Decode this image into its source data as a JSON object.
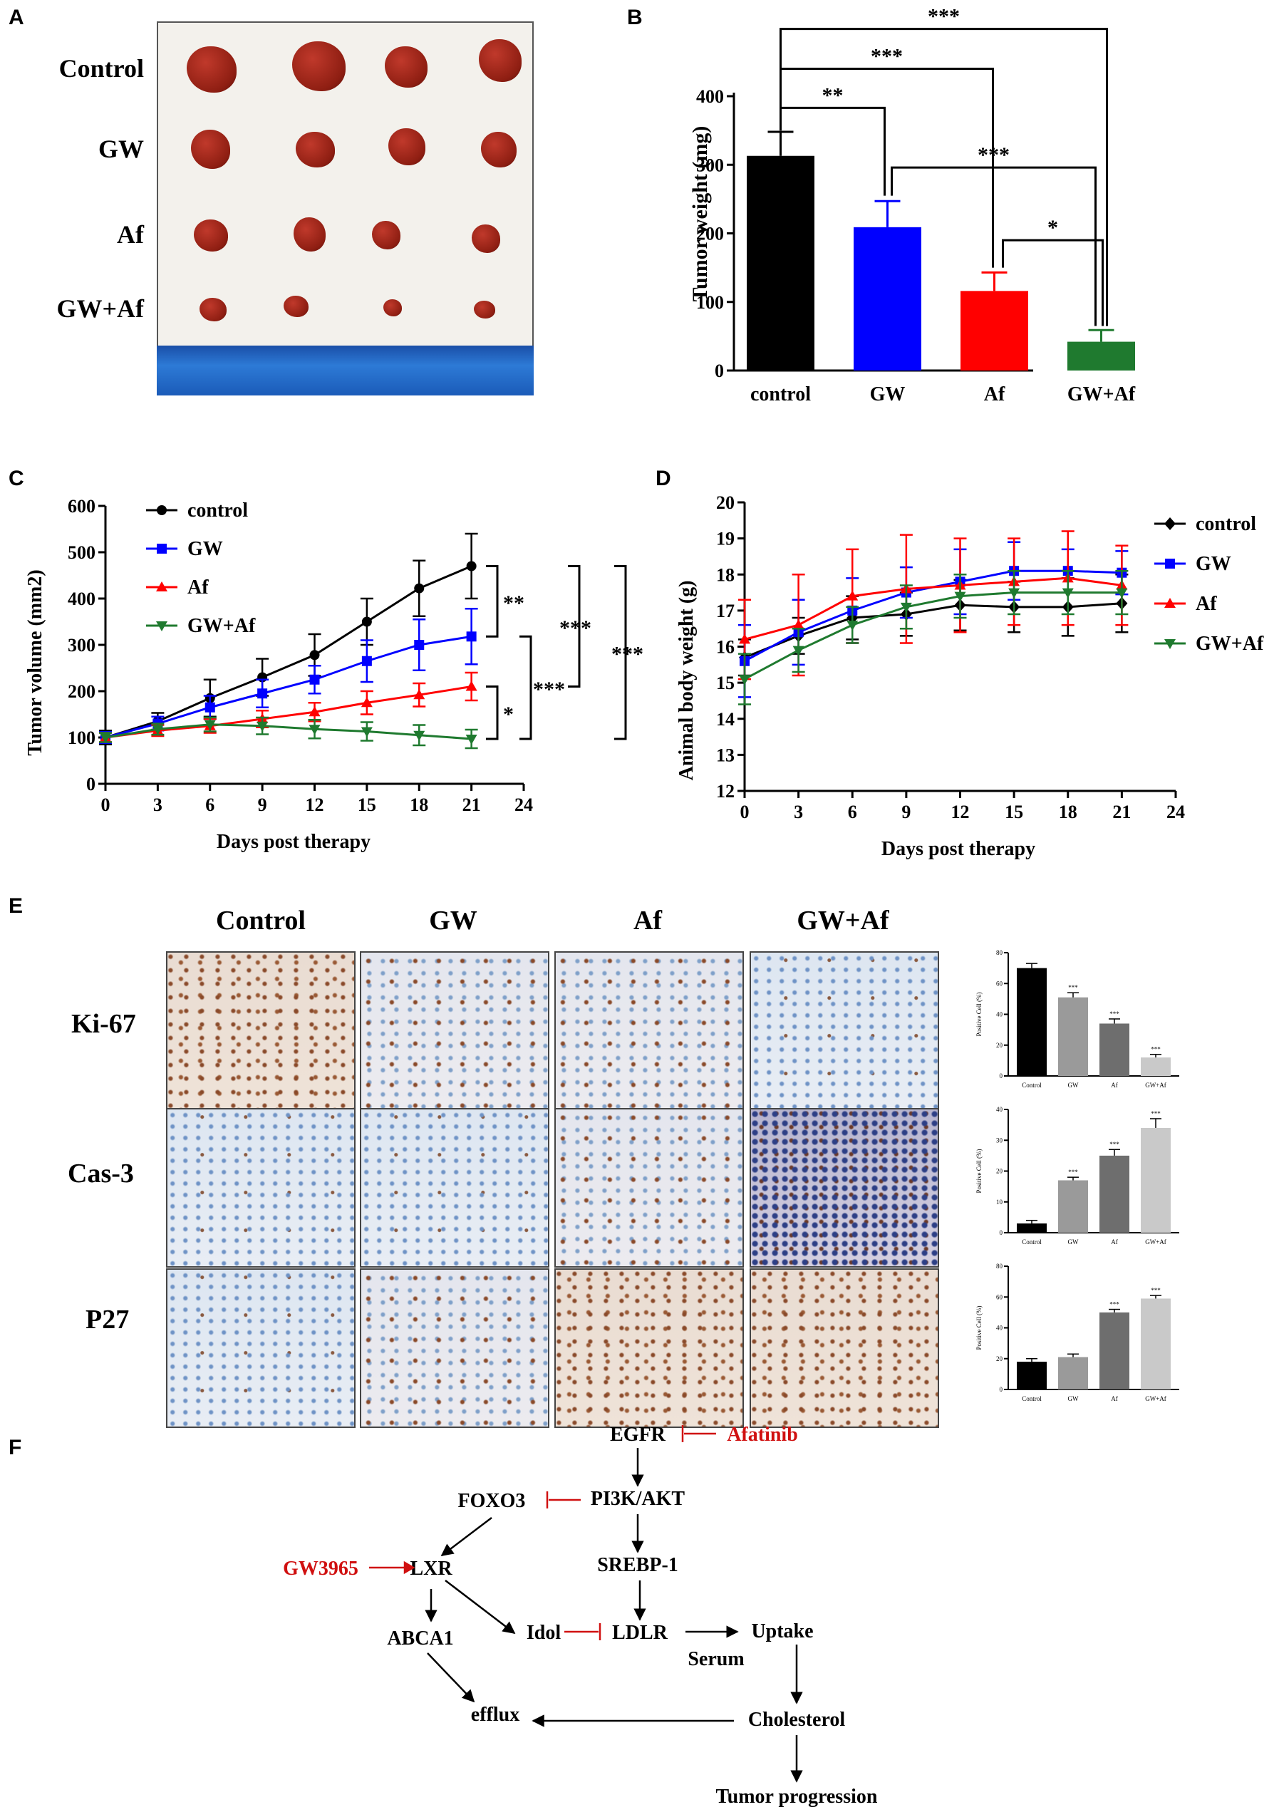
{
  "panels": {
    "a": "A",
    "b": "B",
    "c": "C",
    "d": "D",
    "e": "E",
    "f": "F"
  },
  "panel_a": {
    "rows": [
      "Control",
      "GW",
      "Af",
      "GW+Af"
    ]
  },
  "panel_e": {
    "columns": [
      "Control",
      "GW",
      "Af",
      "GW+Af"
    ],
    "rows": [
      "Ki-67",
      "Cas-3",
      "P27"
    ]
  },
  "panel_f": {
    "nodes": {
      "egfr": "EGFR",
      "afatinib": "Afatinib",
      "foxo3": "FOXO3",
      "pi3k": "PI3K/AKT",
      "gw3965": "GW3965",
      "lxr": "LXR",
      "srebp": "SREBP-1",
      "abca1": "ABCA1",
      "idol": "Idol",
      "ldlr": "LDLR",
      "uptake": "Uptake",
      "serum": "Serum",
      "efflux": "efflux",
      "cholesterol": "Cholesterol",
      "tumor": "Tumor progression"
    }
  },
  "colors": {
    "control": "#000000",
    "gw": "#0000ff",
    "af": "#ff0000",
    "gwaf": "#1f7a2f",
    "inhibit": "#d01010"
  },
  "chart_data": [
    {
      "id": "B",
      "type": "bar",
      "categories": [
        "control",
        "GW",
        "Af",
        "GW+Af"
      ],
      "values": [
        313,
        209,
        116,
        42
      ],
      "errors": [
        35,
        38,
        27,
        17
      ],
      "ylabel": "Tumor weight (mg)",
      "ylim": [
        0,
        400
      ],
      "yticks": [
        "0",
        "100",
        "200",
        "300",
        "400"
      ],
      "significance": [
        "**",
        "***",
        "***",
        "***",
        "*"
      ]
    },
    {
      "id": "C",
      "type": "line",
      "x": [
        0,
        3,
        6,
        9,
        12,
        15,
        18,
        21
      ],
      "xticks": [
        "0",
        "3",
        "6",
        "9",
        "12",
        "15",
        "18",
        "21",
        "24"
      ],
      "yticks": [
        "0",
        "100",
        "200",
        "300",
        "400",
        "500",
        "600"
      ],
      "xlabel": "Days post therapy",
      "ylabel": "Tumor volume (mm2)",
      "xlim": [
        0,
        24
      ],
      "ylim": [
        0,
        600
      ],
      "series": [
        {
          "name": "control",
          "values": [
            100,
            135,
            185,
            230,
            278,
            350,
            422,
            470
          ],
          "errors": [
            15,
            18,
            40,
            40,
            45,
            50,
            60,
            70
          ]
        },
        {
          "name": "GW",
          "values": [
            100,
            130,
            165,
            195,
            225,
            265,
            300,
            318
          ],
          "errors": [
            12,
            15,
            25,
            30,
            30,
            45,
            55,
            60
          ]
        },
        {
          "name": "Af",
          "values": [
            100,
            115,
            125,
            140,
            155,
            175,
            192,
            210
          ],
          "errors": [
            10,
            12,
            15,
            18,
            20,
            25,
            25,
            30
          ]
        },
        {
          "name": "GW+Af",
          "values": [
            100,
            118,
            128,
            125,
            118,
            113,
            105,
            97
          ],
          "errors": [
            10,
            12,
            15,
            18,
            20,
            20,
            22,
            20
          ]
        }
      ],
      "significance": [
        "**",
        "*",
        "***",
        "***",
        "***"
      ]
    },
    {
      "id": "D",
      "type": "line",
      "x": [
        0,
        3,
        6,
        9,
        12,
        15,
        18,
        21
      ],
      "xticks": [
        "0",
        "3",
        "6",
        "9",
        "12",
        "15",
        "18",
        "21",
        "24"
      ],
      "yticks": [
        "12",
        "13",
        "14",
        "15",
        "16",
        "17",
        "18",
        "19",
        "20"
      ],
      "xlabel": "Days post therapy",
      "ylabel": "Animal body weight (g)",
      "xlim": [
        0,
        24
      ],
      "ylim": [
        12,
        20
      ],
      "series": [
        {
          "name": "control",
          "values": [
            15.7,
            16.3,
            16.8,
            16.9,
            17.15,
            17.1,
            17.1,
            17.2
          ],
          "errors": [
            0.5,
            0.5,
            0.6,
            0.6,
            0.7,
            0.7,
            0.8,
            0.8
          ]
        },
        {
          "name": "GW",
          "values": [
            15.6,
            16.4,
            17.0,
            17.5,
            17.8,
            18.1,
            18.1,
            18.05
          ],
          "errors": [
            1.0,
            0.9,
            0.9,
            0.7,
            0.9,
            0.8,
            0.6,
            0.6
          ]
        },
        {
          "name": "Af",
          "values": [
            16.2,
            16.6,
            17.4,
            17.6,
            17.7,
            17.8,
            17.9,
            17.7
          ],
          "errors": [
            1.1,
            1.4,
            1.3,
            1.5,
            1.3,
            1.2,
            1.3,
            1.1
          ]
        },
        {
          "name": "GW+Af",
          "values": [
            15.1,
            15.9,
            16.6,
            17.1,
            17.4,
            17.5,
            17.5,
            17.5
          ],
          "errors": [
            0.7,
            0.6,
            0.5,
            0.6,
            0.6,
            0.6,
            0.6,
            0.6
          ]
        }
      ]
    },
    {
      "id": "E-Ki67",
      "type": "bar",
      "categories": [
        "Control",
        "GW",
        "Af",
        "GW+Af"
      ],
      "values": [
        70,
        51,
        34,
        12
      ],
      "errors": [
        3,
        3,
        3,
        2
      ],
      "ylim": [
        0,
        80
      ],
      "ylabel": "Positive Cell (%)",
      "yticks": [
        "0",
        "20",
        "40",
        "60",
        "80"
      ],
      "significance": [
        "***",
        "***",
        "***"
      ]
    },
    {
      "id": "E-Cas3",
      "type": "bar",
      "categories": [
        "Control",
        "GW",
        "Af",
        "GW+Af"
      ],
      "values": [
        3,
        17,
        25,
        34
      ],
      "errors": [
        1,
        1,
        2,
        3
      ],
      "ylim": [
        0,
        40
      ],
      "ylabel": "Positive Cell (%)",
      "yticks": [
        "0",
        "10",
        "20",
        "30",
        "40"
      ],
      "significance": [
        "***",
        "***",
        "***"
      ]
    },
    {
      "id": "E-P27",
      "type": "bar",
      "categories": [
        "Control",
        "GW",
        "Af",
        "GW+Af"
      ],
      "values": [
        18,
        21,
        50,
        59
      ],
      "errors": [
        2,
        2,
        2,
        2
      ],
      "ylim": [
        0,
        80
      ],
      "ylabel": "Positive Cell (%)",
      "yticks": [
        "0",
        "20",
        "40",
        "60",
        "80"
      ],
      "significance": [
        "***",
        "***"
      ]
    }
  ]
}
